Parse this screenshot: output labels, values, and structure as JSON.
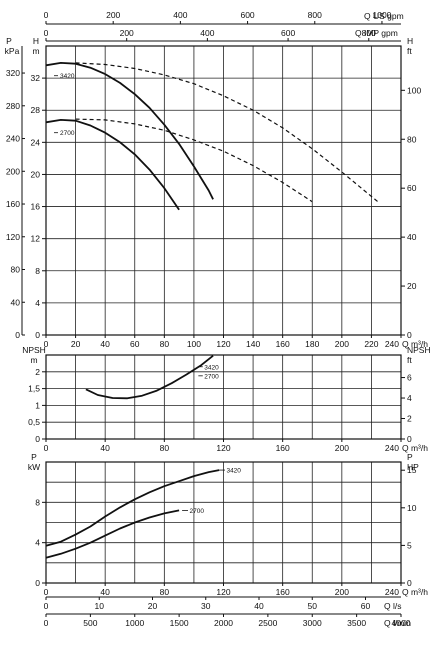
{
  "top_axes": {
    "us_gpm": {
      "label": "Q US gpm",
      "ticks": [
        0,
        200,
        400,
        600,
        800,
        1000
      ]
    },
    "imp_gpm": {
      "label": "Q IMP gpm",
      "ticks": [
        0,
        200,
        400,
        600,
        800
      ]
    }
  },
  "bottom_axes": {
    "ls": {
      "label": "Q l/s",
      "ticks": [
        0,
        10,
        20,
        30,
        40,
        50,
        60
      ]
    },
    "lmin": {
      "label": "Q l/min",
      "ticks": [
        0,
        500,
        1000,
        1500,
        2000,
        2500,
        3000,
        3500,
        4000
      ]
    }
  },
  "chart_data": [
    {
      "id": "head",
      "type": "line",
      "xlabel": "Q m³/h",
      "xlim": [
        0,
        240
      ],
      "xticks": [
        0,
        20,
        40,
        60,
        80,
        100,
        120,
        140,
        160,
        180,
        200,
        220,
        240
      ],
      "ylabel_left": "H m",
      "ylim": [
        0,
        36
      ],
      "yticks": [
        0,
        4,
        8,
        12,
        16,
        20,
        24,
        28,
        32
      ],
      "ylabel_outer": "P kPa",
      "outer_ticks": [
        0,
        40,
        80,
        120,
        160,
        200,
        240,
        280,
        320
      ],
      "ylabel_right": "H ft",
      "right_ticks": [
        0,
        20,
        40,
        60,
        80,
        100
      ],
      "series": [
        {
          "name": "3420",
          "style": "solid",
          "x": [
            0,
            10,
            20,
            30,
            40,
            50,
            60,
            70,
            80,
            90,
            100,
            110,
            113
          ],
          "y": [
            33.6,
            33.9,
            33.8,
            33.3,
            32.5,
            31.4,
            30.0,
            28.3,
            26.2,
            23.8,
            21.0,
            18.0,
            16.9
          ]
        },
        {
          "name": "",
          "style": "dashed",
          "x": [
            20,
            40,
            60,
            80,
            100,
            120,
            140,
            160,
            180,
            200,
            225
          ],
          "y": [
            33.9,
            33.7,
            33.2,
            32.4,
            31.3,
            29.8,
            28.0,
            25.8,
            23.2,
            20.3,
            16.5
          ]
        },
        {
          "name": "2700",
          "style": "solid",
          "x": [
            0,
            10,
            20,
            30,
            40,
            50,
            60,
            70,
            80,
            90
          ],
          "y": [
            26.5,
            26.8,
            26.7,
            26.1,
            25.2,
            24.0,
            22.5,
            20.6,
            18.3,
            15.6
          ]
        },
        {
          "name": "",
          "style": "dashed",
          "x": [
            20,
            40,
            60,
            80,
            100,
            120,
            140,
            160,
            180
          ],
          "y": [
            26.9,
            26.8,
            26.3,
            25.5,
            24.3,
            22.9,
            21.1,
            19.0,
            16.6
          ]
        }
      ]
    },
    {
      "id": "npsh",
      "type": "line",
      "xlabel": "Q m³/h",
      "xlim": [
        0,
        240
      ],
      "xticks": [
        0,
        40,
        80,
        120,
        160,
        200,
        240
      ],
      "ylabel_left": "NPSH m",
      "ylim": [
        0,
        2.5
      ],
      "yticks": [
        0,
        0.5,
        1,
        1.5,
        2
      ],
      "ytick_labels": [
        "0",
        "0,5",
        "1",
        "1,5",
        "2"
      ],
      "ylabel_right": "NPSH ft",
      "right_ticks": [
        0,
        2,
        4,
        6
      ],
      "series": [
        {
          "name": "3420 / 2700",
          "style": "solid",
          "x": [
            27,
            35,
            45,
            55,
            65,
            75,
            85,
            95,
            105,
            113
          ],
          "y": [
            1.48,
            1.31,
            1.22,
            1.21,
            1.29,
            1.44,
            1.66,
            1.92,
            2.2,
            2.48
          ]
        }
      ],
      "annotations": [
        "3420",
        "2700"
      ]
    },
    {
      "id": "power",
      "type": "line",
      "xlabel": "Q m³/h",
      "xlim": [
        0,
        240
      ],
      "xticks": [
        0,
        40,
        80,
        120,
        160,
        200,
        240
      ],
      "ylabel_left": "P kW",
      "ylim": [
        0,
        12
      ],
      "yticks": [
        0,
        4,
        8
      ],
      "ylabel_right": "P HP",
      "right_ticks": [
        0,
        5,
        10,
        15
      ],
      "series": [
        {
          "name": "3420",
          "style": "solid",
          "x": [
            0,
            10,
            20,
            30,
            40,
            50,
            60,
            70,
            80,
            90,
            100,
            110,
            117
          ],
          "y": [
            3.7,
            4.1,
            4.8,
            5.6,
            6.6,
            7.5,
            8.3,
            9.0,
            9.6,
            10.1,
            10.6,
            11.0,
            11.2
          ]
        },
        {
          "name": "2700",
          "style": "solid",
          "x": [
            0,
            10,
            20,
            30,
            40,
            50,
            60,
            70,
            80,
            90
          ],
          "y": [
            2.5,
            2.9,
            3.4,
            4.0,
            4.7,
            5.4,
            6.0,
            6.5,
            6.9,
            7.2
          ]
        }
      ]
    }
  ]
}
